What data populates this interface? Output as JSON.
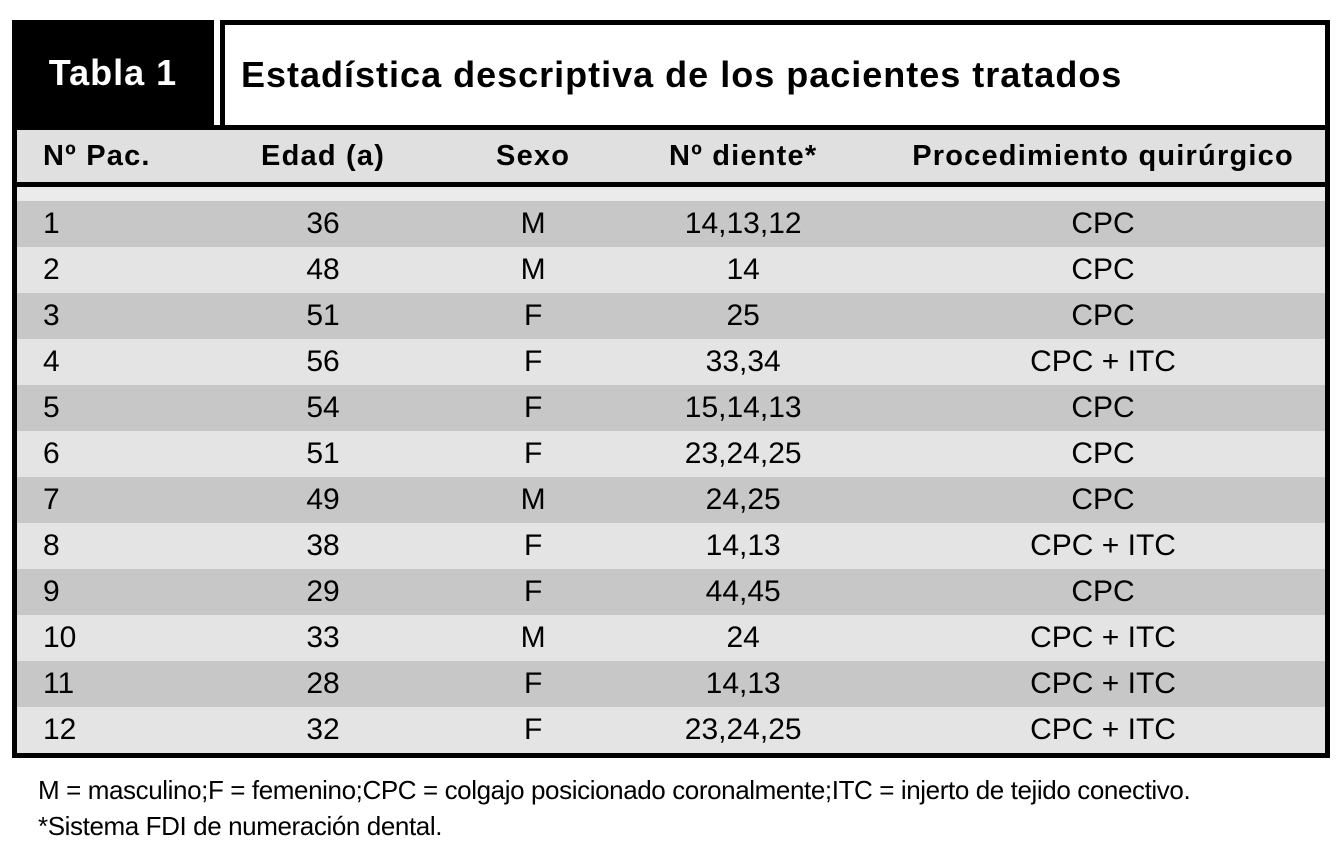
{
  "table": {
    "tag": "Tabla 1",
    "title": "Estadística descriptiva de los pacientes tratados",
    "columns": [
      "Nº Pac.",
      "Edad (a)",
      "Sexo",
      "Nº diente*",
      "Procedimiento quirúrgico"
    ],
    "rows": [
      [
        "1",
        "36",
        "M",
        "14,13,12",
        "CPC"
      ],
      [
        "2",
        "48",
        "M",
        "14",
        "CPC"
      ],
      [
        "3",
        "51",
        "F",
        "25",
        "CPC"
      ],
      [
        "4",
        "56",
        "F",
        "33,34",
        "CPC + ITC"
      ],
      [
        "5",
        "54",
        "F",
        "15,14,13",
        "CPC"
      ],
      [
        "6",
        "51",
        "F",
        "23,24,25",
        "CPC"
      ],
      [
        "7",
        "49",
        "M",
        "24,25",
        "CPC"
      ],
      [
        "8",
        "38",
        "F",
        "14,13",
        "CPC + ITC"
      ],
      [
        "9",
        "29",
        "F",
        "44,45",
        "CPC"
      ],
      [
        "10",
        "33",
        "M",
        "24",
        "CPC + ITC"
      ],
      [
        "11",
        "28",
        "F",
        "14,13",
        "CPC + ITC"
      ],
      [
        "12",
        "32",
        "F",
        "23,24,25",
        "CPC + ITC"
      ]
    ],
    "footnotes": [
      "M = masculino;F = femenino;CPC = colgajo posicionado coronalmente;ITC = injerto de tejido conectivo.",
      "*Sistema FDI de numeración dental."
    ]
  },
  "colors": {
    "black": "#000000",
    "header_bg": "#e0e0e0",
    "row_dark": "#c7c7c7",
    "row_light": "#e4e4e4",
    "area_bg": "#ebebeb",
    "page_bg": "#ffffff"
  }
}
